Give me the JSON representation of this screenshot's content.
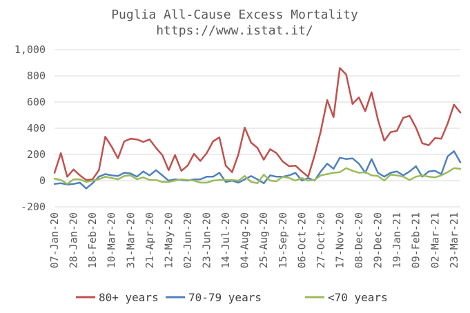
{
  "chart_data": {
    "type": "line",
    "title": "Puglia All-Cause Excess Mortality",
    "subtitle": "https://www.istat.it/",
    "xlabel": "",
    "ylabel": "",
    "ylim": [
      -200,
      1000
    ],
    "y_ticks": [
      -200,
      0,
      200,
      400,
      600,
      800,
      1000
    ],
    "y_tick_labels": [
      "-200",
      "0",
      "200",
      "400",
      "600",
      "800",
      "1,000"
    ],
    "grid": "horizontal",
    "legend_position": "bottom",
    "x_tick_labels": [
      "07-Jan-20",
      "28-Jan-20",
      "18-Feb-20",
      "10-Mar-20",
      "31-Mar-20",
      "21-Apr-20",
      "12-May-20",
      "02-Jun-20",
      "23-Jun-20",
      "14-Jul-20",
      "04-Aug-20",
      "25-Aug-20",
      "15-Sep-20",
      "06-Oct-20",
      "27-Oct-20",
      "17-Nov-20",
      "08-Dec-20",
      "29-Dec-20",
      "19-Jan-21",
      "09-Feb-21",
      "02-Mar-21",
      "23-Mar-21"
    ],
    "x_tick_every": 3,
    "series": [
      {
        "name": "80+ years",
        "color": "#c0504d",
        "values": [
          60,
          210,
          30,
          85,
          40,
          5,
          10,
          80,
          335,
          260,
          170,
          300,
          320,
          315,
          295,
          315,
          250,
          195,
          80,
          195,
          75,
          115,
          205,
          150,
          210,
          300,
          330,
          115,
          65,
          200,
          405,
          290,
          250,
          160,
          240,
          210,
          145,
          110,
          115,
          70,
          30,
          190,
          380,
          615,
          485,
          860,
          810,
          585,
          635,
          530,
          675,
          465,
          305,
          370,
          380,
          480,
          495,
          405,
          285,
          270,
          325,
          320,
          435,
          580,
          520
        ]
      },
      {
        "name": "70-79 years",
        "color": "#4f81bd",
        "values": [
          -25,
          -20,
          -30,
          -25,
          -15,
          -60,
          -20,
          30,
          50,
          40,
          35,
          60,
          55,
          30,
          70,
          40,
          80,
          40,
          0,
          10,
          5,
          0,
          10,
          10,
          30,
          30,
          60,
          -10,
          0,
          -15,
          10,
          35,
          10,
          -20,
          40,
          30,
          30,
          40,
          60,
          0,
          20,
          0,
          70,
          130,
          90,
          175,
          165,
          170,
          130,
          60,
          165,
          60,
          30,
          60,
          70,
          40,
          70,
          110,
          30,
          70,
          75,
          50,
          185,
          225,
          140
        ]
      },
      {
        "name": "<70 years",
        "color": "#9bbb59",
        "values": [
          15,
          5,
          -25,
          10,
          10,
          -10,
          0,
          10,
          30,
          20,
          10,
          35,
          40,
          10,
          25,
          5,
          5,
          -10,
          -10,
          0,
          10,
          5,
          0,
          -15,
          -15,
          0,
          5,
          5,
          5,
          0,
          35,
          -10,
          -20,
          45,
          0,
          -5,
          30,
          20,
          0,
          20,
          0,
          5,
          40,
          50,
          60,
          65,
          95,
          75,
          60,
          65,
          40,
          35,
          0,
          45,
          40,
          30,
          5,
          30,
          40,
          30,
          25,
          40,
          65,
          95,
          90
        ]
      }
    ]
  }
}
